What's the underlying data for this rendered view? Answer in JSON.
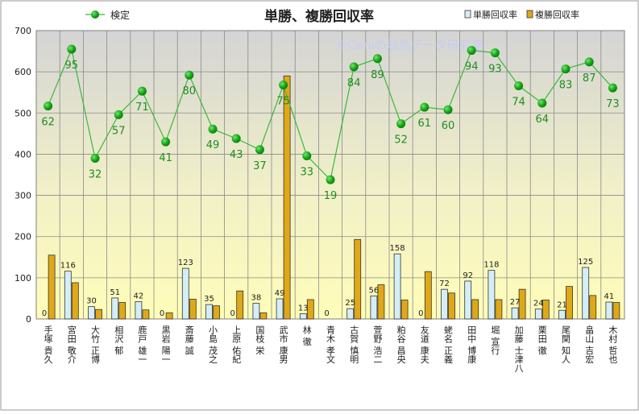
{
  "chart_data": {
    "type": "bar",
    "title": "単勝、複勝回収率",
    "watermark": "©Caniの競馬データ研究室",
    "ylim": [
      0,
      700
    ],
    "yticks": [
      0,
      100,
      200,
      300,
      400,
      500,
      600,
      700
    ],
    "grid": true,
    "legend_position": "top",
    "categories": [
      "手塚 貴久",
      "宮田 敬介",
      "大竹 正博",
      "相沢 郁",
      "鹿戸 雄一",
      "黒岩 陽一",
      "斎藤 誠",
      "小島 茂之",
      "上原 佑紀",
      "国枝 栄",
      "武市 康男",
      "林 徹",
      "青木 孝文",
      "古賀 慎明",
      "萱野 浩二",
      "粕谷 昌央",
      "友道 康夫",
      "蛯名 正義",
      "田中 博康",
      "堀 宣行",
      "加藤 士津八",
      "栗田 徹",
      "尾関 知人",
      "畠山 吉宏",
      "木村 哲也"
    ],
    "series": [
      {
        "name": "単勝回収率",
        "color": "#d4eef7",
        "values": [
          0,
          116,
          30,
          51,
          42,
          0,
          123,
          35,
          0,
          38,
          49,
          13,
          0,
          25,
          56,
          158,
          0,
          72,
          92,
          118,
          27,
          24,
          21,
          125,
          41
        ]
      },
      {
        "name": "複勝回収率",
        "color": "#e0a818",
        "values": [
          155,
          88,
          23,
          40,
          22,
          15,
          48,
          32,
          68,
          15,
          590,
          47,
          0,
          193,
          83,
          46,
          115,
          63,
          47,
          47,
          72,
          46,
          79,
          57,
          40
        ]
      },
      {
        "name": "検定",
        "type": "line",
        "color": "#3cb83c",
        "values": [
          517,
          655,
          390,
          496,
          553,
          430,
          592,
          461,
          438,
          411,
          568,
          396,
          338,
          612,
          632,
          474,
          514,
          508,
          652,
          646,
          566,
          524,
          607,
          624,
          561
        ],
        "labels": [
          62,
          95,
          32,
          57,
          71,
          41,
          80,
          49,
          43,
          37,
          75,
          33,
          19,
          84,
          89,
          52,
          61,
          60,
          94,
          93,
          74,
          64,
          83,
          87,
          73
        ]
      }
    ]
  }
}
